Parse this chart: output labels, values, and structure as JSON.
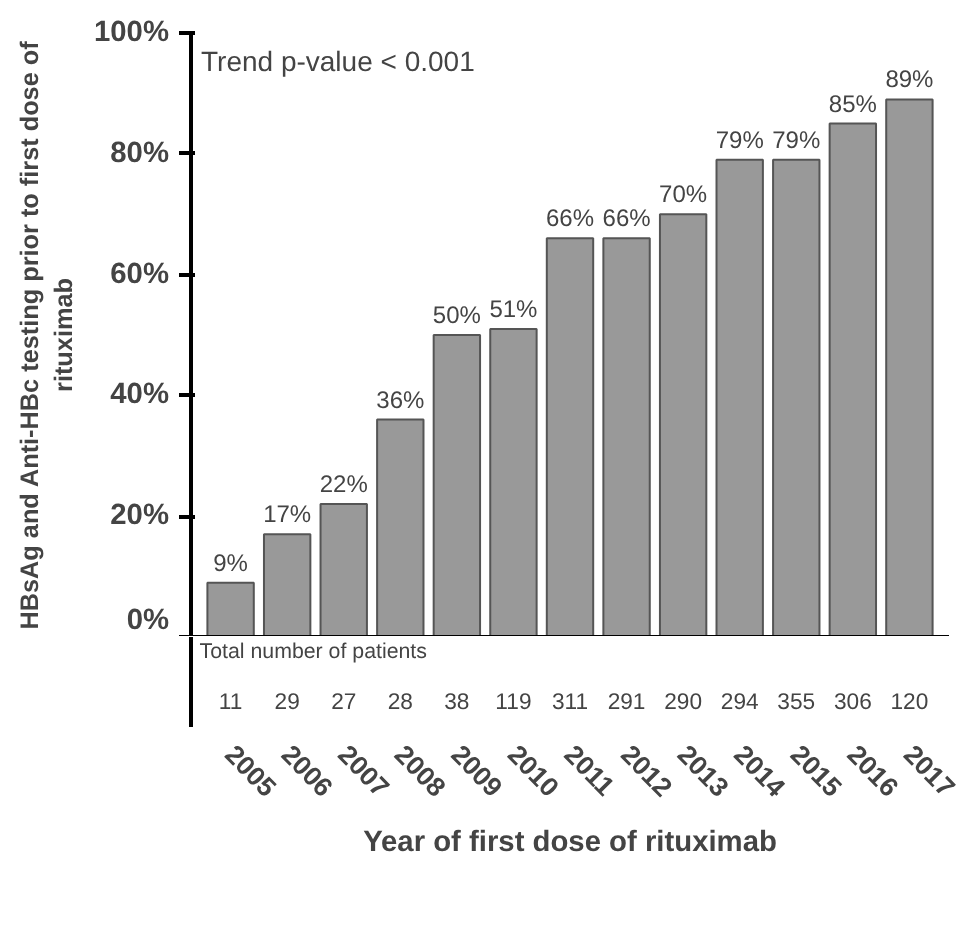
{
  "chart_data": {
    "type": "bar",
    "xlabel": "Year of first dose of rituximab",
    "ylabel": "HBsAg and Anti-HBc testing prior to first dose of rituximab",
    "categories": [
      "2005",
      "2006",
      "2007",
      "2008",
      "2009",
      "2010",
      "2011",
      "2012",
      "2013",
      "2014",
      "2015",
      "2016",
      "2017"
    ],
    "values": [
      9,
      17,
      22,
      36,
      50,
      51,
      66,
      66,
      70,
      79,
      79,
      85,
      89
    ],
    "value_labels": [
      "9%",
      "17%",
      "22%",
      "36%",
      "50%",
      "51%",
      "66%",
      "66%",
      "70%",
      "79%",
      "79%",
      "85%",
      "89%"
    ],
    "color": "#999999",
    "ylim": [
      0,
      100
    ],
    "yticks": [
      {
        "value": 0,
        "label": "0%"
      },
      {
        "value": 20,
        "label": "20%"
      },
      {
        "value": 40,
        "label": "40%"
      },
      {
        "value": 60,
        "label": "60%"
      },
      {
        "value": 80,
        "label": "80%"
      },
      {
        "value": 100,
        "label": "100%"
      }
    ],
    "grid": false,
    "annotations": [
      "Trend p-value < 0.001",
      "Total number of patients",
      "11",
      "29",
      "27",
      "28",
      "38",
      "119",
      "311",
      "291",
      "290",
      "294",
      "355",
      "306",
      "120"
    ]
  }
}
